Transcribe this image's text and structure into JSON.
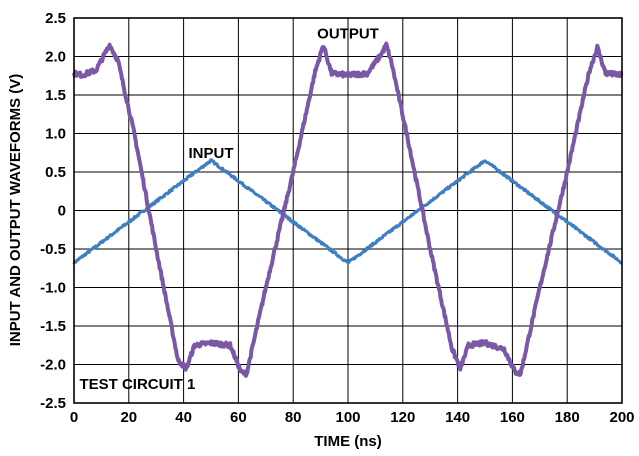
{
  "chart_data": {
    "type": "line",
    "xlabel": "TIME (ns)",
    "ylabel": "INPUT AND OUTPUT WAVEFORMS (V)",
    "xlim": [
      0,
      200
    ],
    "ylim": [
      -2.5,
      2.5
    ],
    "x_ticks": [
      0,
      20,
      40,
      60,
      80,
      100,
      120,
      140,
      160,
      180,
      200
    ],
    "y_ticks": [
      2.5,
      2.0,
      1.5,
      1.0,
      0.5,
      0,
      -0.5,
      -1.0,
      -1.5,
      -2.0,
      -2.5
    ],
    "y_tick_labels": [
      "2.5",
      "2.0",
      "1.5",
      "1.0",
      "0.5",
      "0",
      "-0.5",
      "-1.0",
      "-1.5",
      "-2.0",
      "-2.5"
    ],
    "grid": true,
    "colors": {
      "input": "#3f7fc1",
      "output": "#7a58a6"
    },
    "series": [
      {
        "name": "INPUT",
        "x": [
          0,
          50,
          100,
          150,
          200
        ],
        "y": [
          -0.68,
          0.65,
          -0.68,
          0.65,
          -0.68
        ]
      },
      {
        "name": "OUTPUT",
        "x": [
          0,
          3,
          8,
          13,
          16,
          22,
          30,
          38,
          41,
          44,
          50,
          57,
          61,
          63,
          70,
          80,
          88,
          91,
          94,
          100,
          107,
          112,
          114,
          116,
          122,
          130,
          138,
          141,
          144,
          150,
          157,
          161,
          163,
          170,
          180,
          188,
          191,
          194,
          200
        ],
        "y": [
          1.78,
          1.76,
          1.82,
          2.15,
          1.95,
          1.0,
          -0.5,
          -1.95,
          -2.05,
          -1.75,
          -1.72,
          -1.75,
          -2.1,
          -2.12,
          -1.0,
          0.5,
          1.8,
          2.15,
          1.78,
          1.76,
          1.78,
          2.02,
          2.15,
          1.9,
          0.9,
          -0.5,
          -1.8,
          -2.05,
          -1.75,
          -1.72,
          -1.8,
          -2.1,
          -2.12,
          -1.0,
          0.5,
          1.8,
          2.12,
          1.78,
          1.76
        ]
      }
    ],
    "annotations": [
      {
        "text": "INPUT",
        "x": 50,
        "y": 0.75
      },
      {
        "text": "OUTPUT",
        "x": 100,
        "y": 2.3
      },
      {
        "text": "TEST CIRCUIT 1",
        "x": 2,
        "y": -2.25
      }
    ]
  }
}
